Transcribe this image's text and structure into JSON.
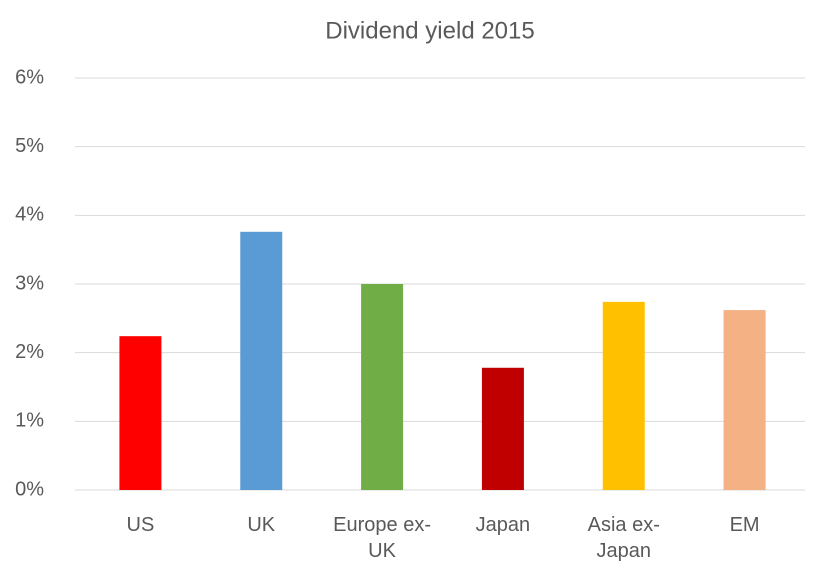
{
  "chart_data": {
    "type": "bar",
    "title": "Dividend yield 2015",
    "categories": [
      "US",
      "UK",
      "Europe ex-UK",
      "Japan",
      "Asia ex-Japan",
      "EM"
    ],
    "values": [
      2.24,
      3.76,
      3.0,
      1.78,
      2.74,
      2.62
    ],
    "colors": [
      "#ff0000",
      "#5b9bd5",
      "#70ad47",
      "#c00000",
      "#ffc000",
      "#f4b183"
    ],
    "ylim": [
      0,
      6
    ],
    "yticks": [
      {
        "value": 0,
        "label": "0%"
      },
      {
        "value": 1,
        "label": "1%"
      },
      {
        "value": 2,
        "label": "2%"
      },
      {
        "value": 3,
        "label": "3%"
      },
      {
        "value": 4,
        "label": "4%"
      },
      {
        "value": 5,
        "label": "5%"
      },
      {
        "value": 6,
        "label": "6%"
      }
    ],
    "grid": true
  }
}
